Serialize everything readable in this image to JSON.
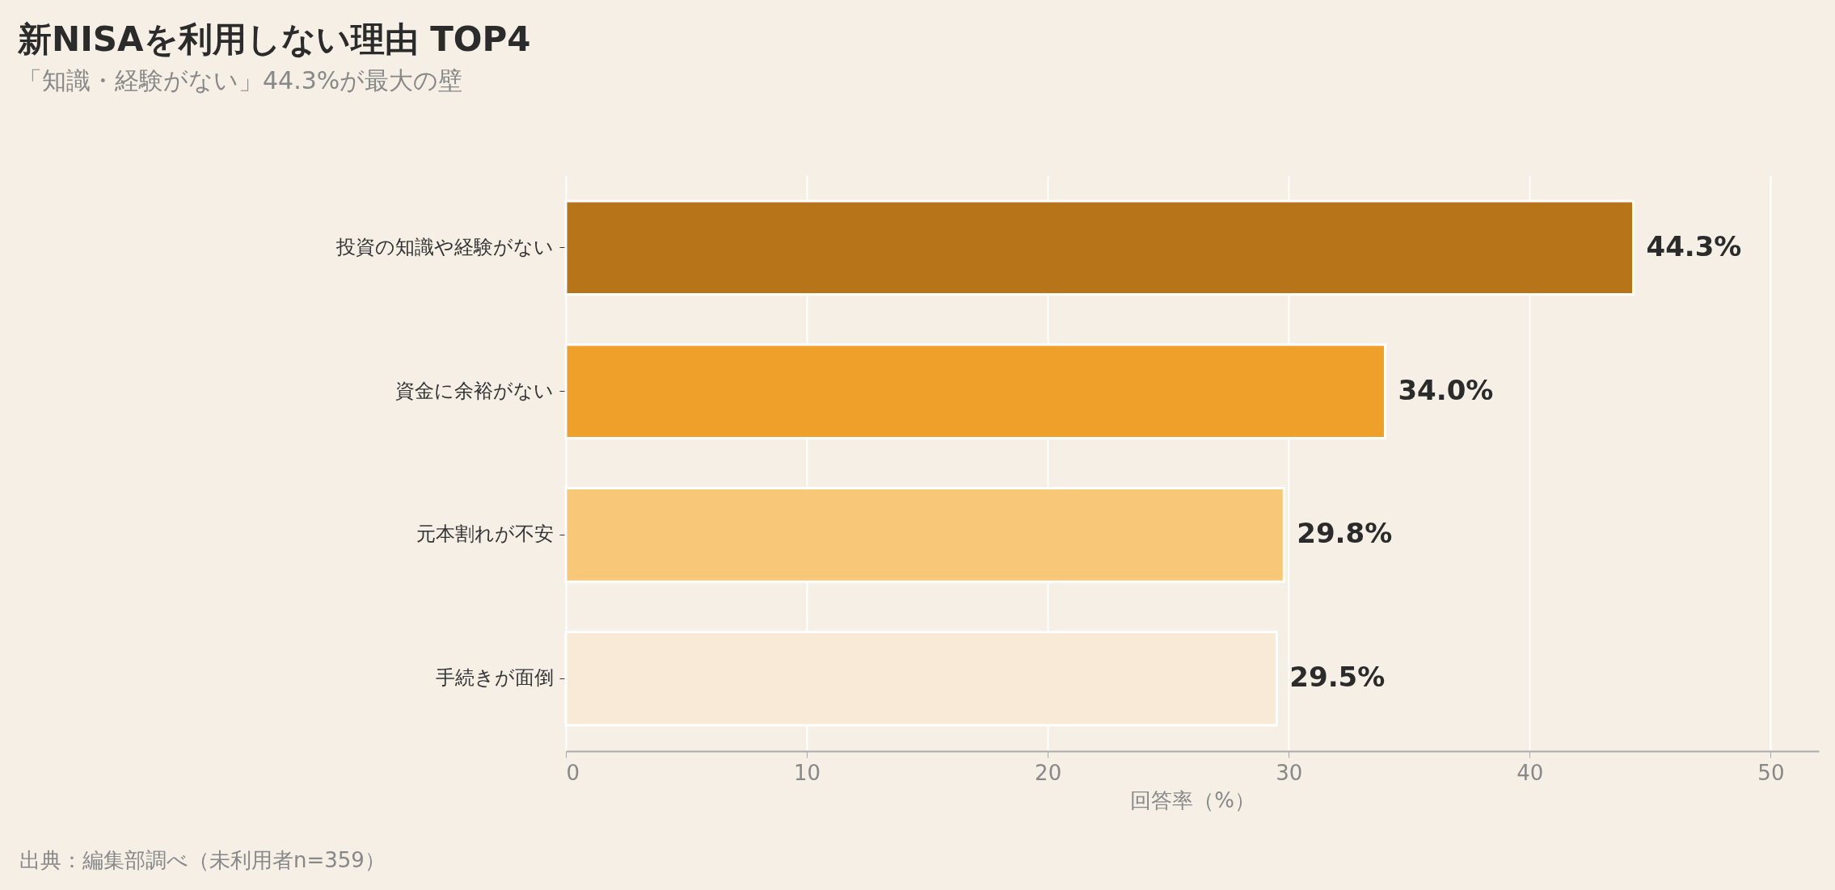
{
  "chart_data": {
    "type": "bar",
    "orientation": "horizontal",
    "title": "新NISAを利用しない理由 TOP4",
    "subtitle": "「知識・経験がない」44.3%が最大の壁",
    "xlabel": "回答率（%）",
    "categories": [
      "投資の知識や経験がない",
      "資金に余裕がない",
      "元本割れが不安",
      "手続きが面倒"
    ],
    "values": [
      44.3,
      34.0,
      29.8,
      29.5
    ],
    "colors": [
      "#b87418",
      "#efa02a",
      "#f8c777",
      "#f8ead6"
    ],
    "value_labels": [
      "44.3%",
      "34.0%",
      "29.8%",
      "29.5%"
    ],
    "xlim": [
      0,
      52
    ],
    "xticks": [
      0,
      10,
      20,
      30,
      40,
      50
    ],
    "grid": "x",
    "annotations": [
      "出典：編集部調べ（未利用者n=359）"
    ]
  }
}
